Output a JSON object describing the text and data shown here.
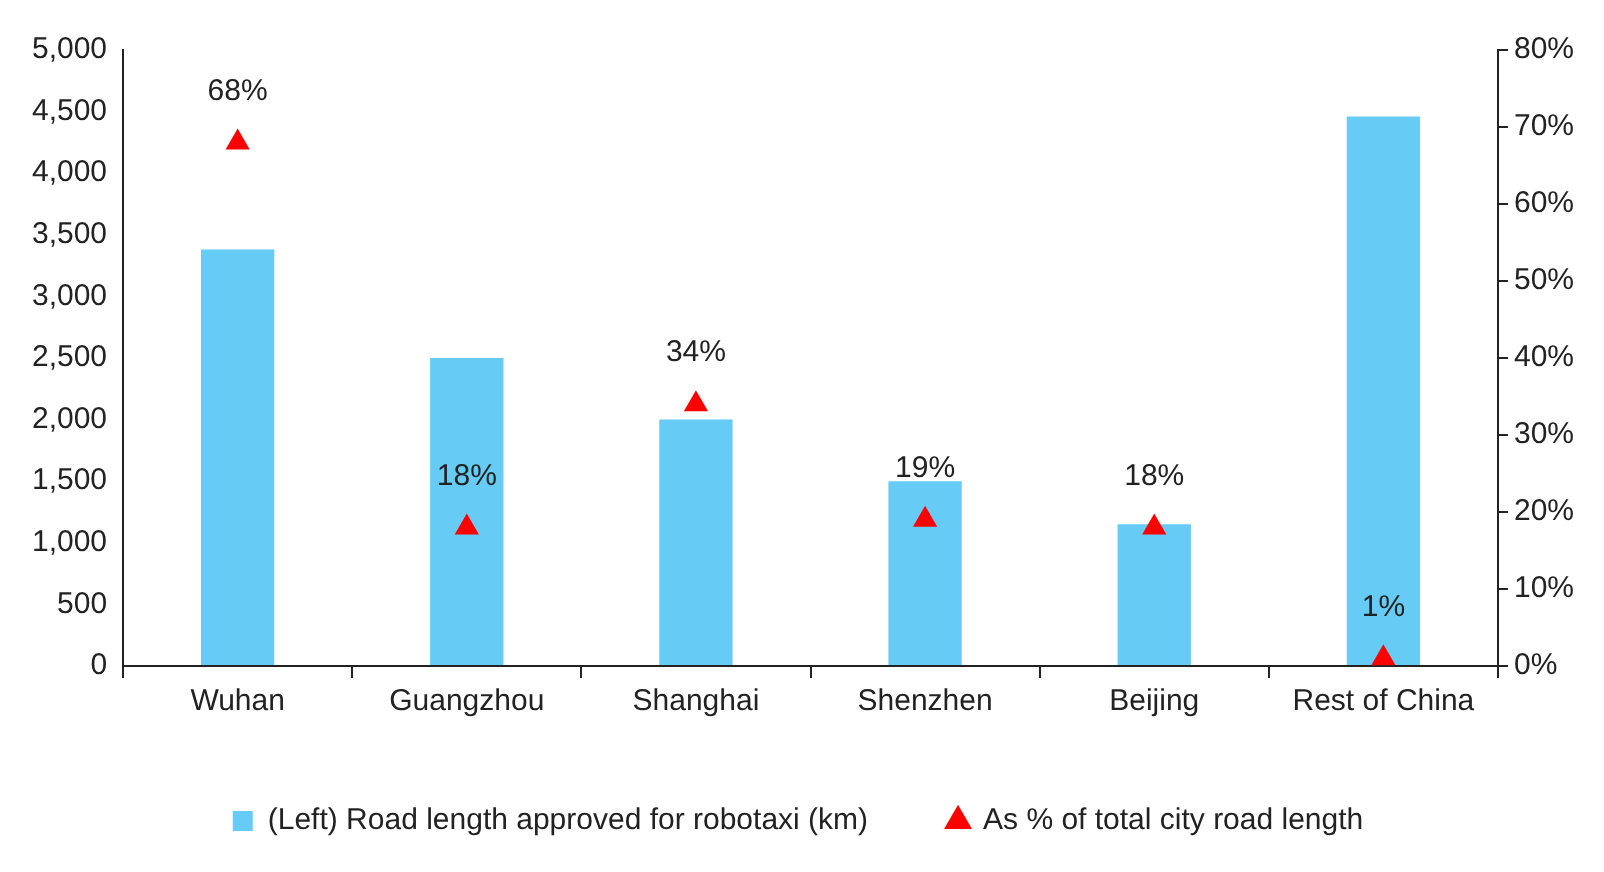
{
  "chart_data": {
    "type": "bar",
    "categories": [
      "Wuhan",
      "Guangzhou",
      "Shanghai",
      "Shenzhen",
      "Beijing",
      "Rest of China"
    ],
    "series": [
      {
        "name": "(Left) Road length approved for robotaxi (km)",
        "color": "#66ccf5",
        "values": [
          3380,
          2500,
          2000,
          1500,
          1150,
          4460
        ]
      },
      {
        "name": "As % of total city road length",
        "type": "scatter",
        "axis": "y2",
        "color": "#ff0000",
        "marker": "triangle",
        "values": [
          68,
          18,
          34,
          19,
          18,
          1
        ],
        "value_labels": [
          "68%",
          "18%",
          "34%",
          "19%",
          "18%",
          "1%"
        ]
      }
    ],
    "ylim": [
      0,
      5000
    ],
    "yticks": [
      {
        "value": 0,
        "label": "0"
      },
      {
        "value": 500,
        "label": "500"
      },
      {
        "value": 1000,
        "label": "1,000"
      },
      {
        "value": 1500,
        "label": "1,500"
      },
      {
        "value": 2000,
        "label": "2,000"
      },
      {
        "value": 2500,
        "label": "2,500"
      },
      {
        "value": 3000,
        "label": "3,000"
      },
      {
        "value": 3500,
        "label": "3,500"
      },
      {
        "value": 4000,
        "label": "4,000"
      },
      {
        "value": 4500,
        "label": "4,500"
      },
      {
        "value": 5000,
        "label": "5,000"
      }
    ],
    "y2lim": [
      0,
      80
    ],
    "y2ticks": [
      {
        "value": 0,
        "label": "0%"
      },
      {
        "value": 10,
        "label": "10%"
      },
      {
        "value": 20,
        "label": "20%"
      },
      {
        "value": 30,
        "label": "30%"
      },
      {
        "value": 40,
        "label": "40%"
      },
      {
        "value": 50,
        "label": "50%"
      },
      {
        "value": 60,
        "label": "60%"
      },
      {
        "value": 70,
        "label": "70%"
      },
      {
        "value": 80,
        "label": "80%"
      }
    ],
    "grid": false,
    "legend": "bottom"
  }
}
